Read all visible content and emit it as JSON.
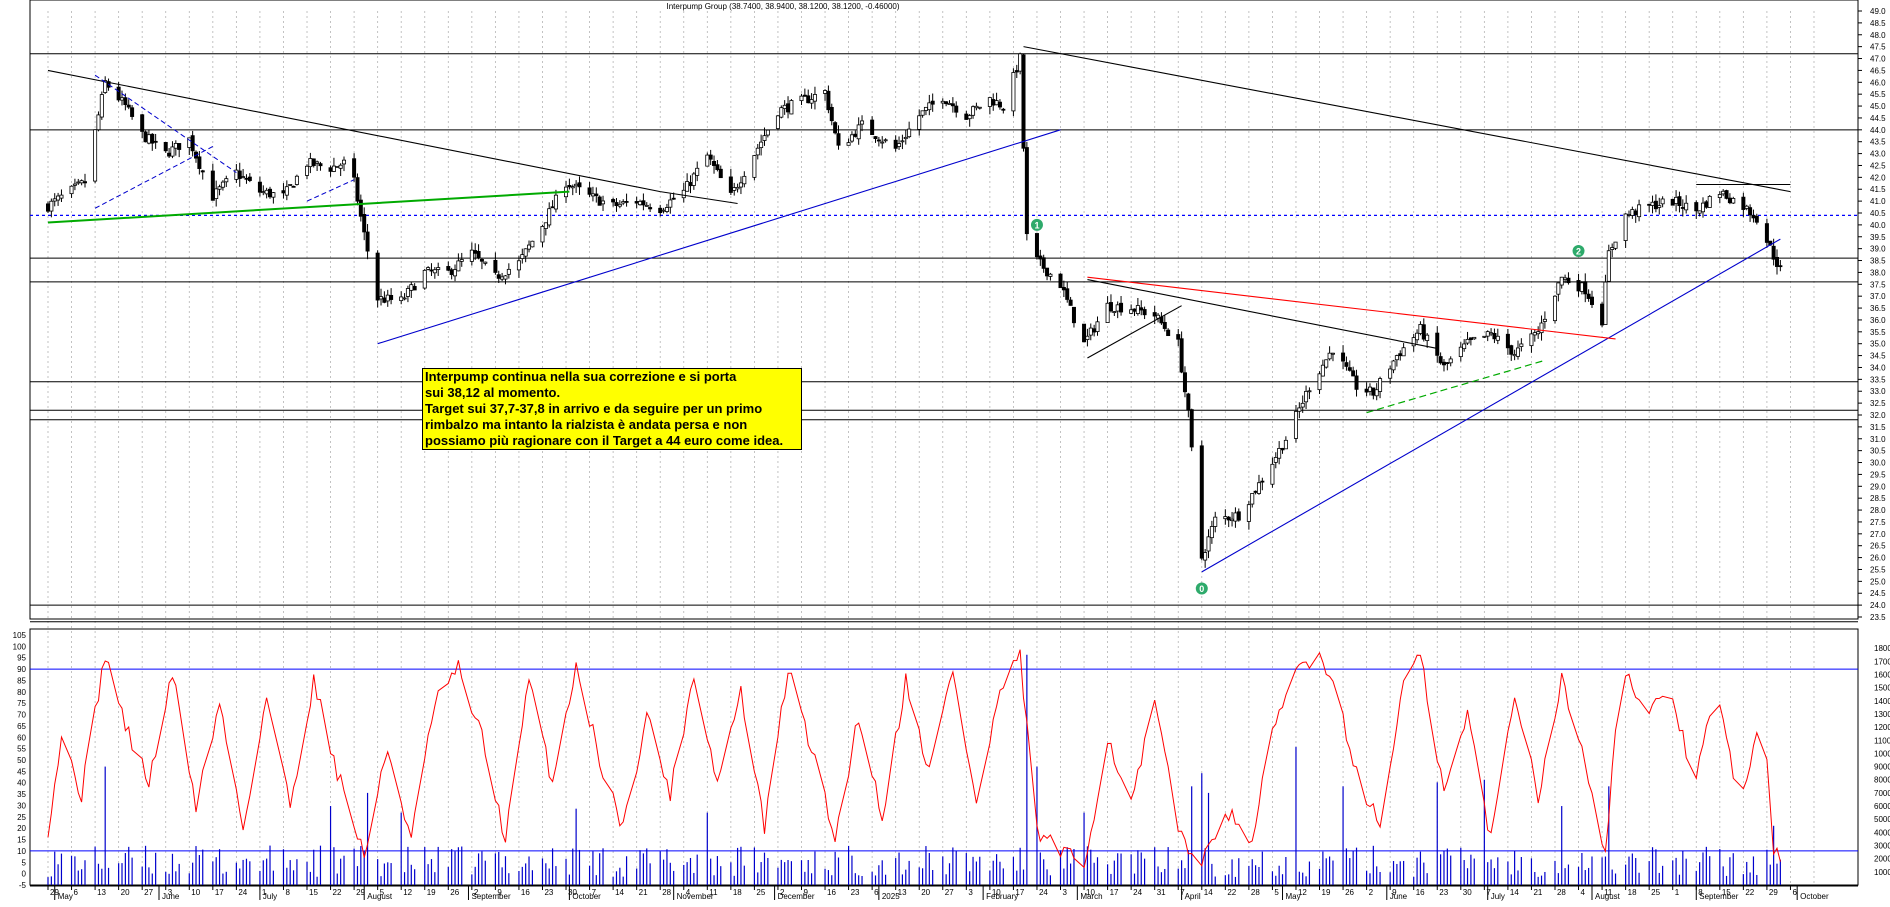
{
  "chart_data": {
    "type": "candlestick",
    "title": "Interpump Group (38.7400, 38.9400, 38.1200, 38.1200, -0.46000)",
    "price_axis": {
      "min": 23.5,
      "max": 49.0,
      "step": 0.5,
      "tick_labels": [
        "23.5",
        "24.0",
        "24.5",
        "25.0",
        "25.5",
        "26.0",
        "26.5",
        "27.0",
        "27.5",
        "28.0",
        "28.5",
        "29.0",
        "29.5",
        "30.0",
        "30.5",
        "31.0",
        "31.5",
        "32.0",
        "32.5",
        "33.0",
        "33.5",
        "34.0",
        "34.5",
        "35.0",
        "35.5",
        "36.0",
        "36.5",
        "37.0",
        "37.5",
        "38.0",
        "38.5",
        "39.0",
        "39.5",
        "40.0",
        "40.5",
        "41.0",
        "41.5",
        "42.0",
        "42.5",
        "43.0",
        "43.5",
        "44.0",
        "44.5",
        "45.0",
        "45.5",
        "46.0",
        "46.5",
        "47.0",
        "47.5",
        "48.0",
        "48.5",
        "49.0"
      ]
    },
    "oscillator_axis": {
      "min": -5,
      "max": 105,
      "tick_labels": [
        "-5",
        "0",
        "5",
        "10",
        "15",
        "20",
        "25",
        "30",
        "35",
        "40",
        "45",
        "50",
        "55",
        "60",
        "65",
        "70",
        "75",
        "80",
        "85",
        "90",
        "95",
        "100",
        "105"
      ],
      "levels": [
        10,
        90
      ]
    },
    "volume_axis": {
      "min": 0,
      "max": 19000,
      "tick_labels": [
        "1000",
        "2000",
        "3000",
        "4000",
        "5000",
        "6000",
        "7000",
        "8000",
        "9000",
        "10000",
        "11000",
        "12000",
        "13000",
        "14000",
        "15000",
        "16000",
        "17000",
        "18000"
      ]
    },
    "date_axis": {
      "days": [
        "29",
        "6",
        "13",
        "20",
        "27",
        "3",
        "10",
        "17",
        "24",
        "1",
        "8",
        "15",
        "22",
        "29",
        "5",
        "12",
        "19",
        "26",
        "2",
        "9",
        "16",
        "23",
        "30",
        "7",
        "14",
        "21",
        "28",
        "4",
        "11",
        "18",
        "25",
        "2",
        "9",
        "16",
        "23",
        "6",
        "13",
        "20",
        "27",
        "3",
        "10",
        "17",
        "24",
        "3",
        "10",
        "17",
        "24",
        "31",
        "7",
        "14",
        "22",
        "28",
        "5",
        "12",
        "19",
        "26",
        "2",
        "9",
        "16",
        "23",
        "30",
        "7",
        "14",
        "21",
        "28",
        "4",
        "11",
        "18",
        "25",
        "1",
        "8",
        "15",
        "22",
        "29",
        "6"
      ],
      "months": [
        "May",
        "June",
        "July",
        "August",
        "September",
        "October",
        "November",
        "December",
        "2025",
        "February",
        "March",
        "April",
        "May",
        "June",
        "July",
        "August",
        "September",
        "October"
      ],
      "first_day": "2024-04-29",
      "last_day": "2025-10-06"
    },
    "horizontal_levels": [
      47.2,
      44.0,
      38.6,
      37.6,
      33.4,
      32.2,
      31.8,
      24.0,
      23.3
    ],
    "dotted_level": 40.4,
    "trendlines": [
      {
        "color": "#000000",
        "from": [
          "2024-04-29",
          46.5
        ],
        "to": [
          "2024-10-28",
          41.4
        ]
      },
      {
        "color": "#00aa00",
        "from": [
          "2024-04-29",
          40.1
        ],
        "to": [
          "2024-10-01",
          41.4
        ]
      },
      {
        "color": "#0000cc",
        "from": [
          "2024-08-05",
          35.0
        ],
        "to": [
          "2025-02-24",
          44.0
        ]
      },
      {
        "color": "#000000",
        "from": [
          "2025-02-13",
          47.5
        ],
        "to": [
          "2025-09-29",
          41.4
        ]
      },
      {
        "color": "#0000cc",
        "from": [
          "2025-04-07",
          25.4
        ],
        "to": [
          "2025-09-26",
          39.4
        ]
      },
      {
        "color": "#ff0000",
        "from": [
          "2025-03-04",
          37.8
        ],
        "to": [
          "2025-08-08",
          35.2
        ]
      },
      {
        "color": "#000000",
        "from": [
          "2025-03-04",
          37.7
        ],
        "to": [
          "2025-06-16",
          34.8
        ]
      },
      {
        "color": "#000000",
        "from": [
          "2025-03-04",
          34.4
        ],
        "to": [
          "2025-04-01",
          36.6
        ]
      }
    ],
    "wave_labels": [
      {
        "label": "0",
        "date": "2025-04-07",
        "price": 24.7
      },
      {
        "label": "1",
        "date": "2025-02-17",
        "price": 40.0
      },
      {
        "label": "2",
        "date": "2025-07-28",
        "price": 38.9
      }
    ],
    "series": [
      {
        "name": "Price",
        "type": "candlestick",
        "color": "#000000",
        "anchors": [
          [
            "2024-04-29",
            40.8
          ],
          [
            "2024-05-10",
            41.8
          ],
          [
            "2024-05-16",
            46.0
          ],
          [
            "2024-05-22",
            45.0
          ],
          [
            "2024-05-27",
            43.8
          ],
          [
            "2024-06-03",
            43.0
          ],
          [
            "2024-06-10",
            43.6
          ],
          [
            "2024-06-17",
            41.2
          ],
          [
            "2024-06-24",
            42.2
          ],
          [
            "2024-07-01",
            41.4
          ],
          [
            "2024-07-08",
            41.2
          ],
          [
            "2024-07-15",
            42.6
          ],
          [
            "2024-07-22",
            42.4
          ],
          [
            "2024-07-26",
            42.6
          ],
          [
            "2024-07-29",
            41.8
          ],
          [
            "2024-08-01",
            39.6
          ],
          [
            "2024-08-05",
            36.9
          ],
          [
            "2024-08-12",
            36.8
          ],
          [
            "2024-08-19",
            38.0
          ],
          [
            "2024-08-26",
            38.0
          ],
          [
            "2024-09-02",
            38.8
          ],
          [
            "2024-09-09",
            37.8
          ],
          [
            "2024-09-16",
            38.4
          ],
          [
            "2024-09-23",
            40.0
          ],
          [
            "2024-09-30",
            41.8
          ],
          [
            "2024-10-07",
            41.2
          ],
          [
            "2024-10-14",
            40.8
          ],
          [
            "2024-10-21",
            41.0
          ],
          [
            "2024-10-28",
            40.7
          ],
          [
            "2024-11-04",
            41.4
          ],
          [
            "2024-11-11",
            42.9
          ],
          [
            "2024-11-18",
            41.2
          ],
          [
            "2024-11-25",
            43.0
          ],
          [
            "2024-12-02",
            44.8
          ],
          [
            "2024-12-09",
            45.2
          ],
          [
            "2024-12-16",
            45.6
          ],
          [
            "2024-12-20",
            43.2
          ],
          [
            "2024-12-27",
            44.2
          ],
          [
            "2025-01-06",
            43.2
          ],
          [
            "2025-01-13",
            44.6
          ],
          [
            "2025-01-20",
            45.4
          ],
          [
            "2025-01-27",
            44.6
          ],
          [
            "2025-02-03",
            45.3
          ],
          [
            "2025-02-07",
            45.0
          ],
          [
            "2025-02-12",
            47.0
          ],
          [
            "2025-02-14",
            39.5
          ],
          [
            "2025-02-17",
            38.5
          ],
          [
            "2025-02-24",
            37.5
          ],
          [
            "2025-03-03",
            35.0
          ],
          [
            "2025-03-10",
            36.6
          ],
          [
            "2025-03-17",
            36.5
          ],
          [
            "2025-03-24",
            36.2
          ],
          [
            "2025-03-31",
            35.0
          ],
          [
            "2025-04-03",
            32.0
          ],
          [
            "2025-04-07",
            26.0
          ],
          [
            "2025-04-11",
            27.6
          ],
          [
            "2025-04-18",
            27.8
          ],
          [
            "2025-04-25",
            29.3
          ],
          [
            "2025-05-02",
            31.0
          ],
          [
            "2025-05-09",
            33.2
          ],
          [
            "2025-05-16",
            34.8
          ],
          [
            "2025-05-23",
            33.2
          ],
          [
            "2025-05-28",
            32.9
          ],
          [
            "2025-06-04",
            34.5
          ],
          [
            "2025-06-11",
            35.6
          ],
          [
            "2025-06-18",
            34.0
          ],
          [
            "2025-06-25",
            35.0
          ],
          [
            "2025-07-02",
            35.4
          ],
          [
            "2025-07-09",
            34.6
          ],
          [
            "2025-07-16",
            35.5
          ],
          [
            "2025-07-23",
            37.8
          ],
          [
            "2025-07-30",
            37.3
          ],
          [
            "2025-08-04",
            36.0
          ],
          [
            "2025-08-06",
            38.8
          ],
          [
            "2025-08-11",
            40.4
          ],
          [
            "2025-08-18",
            40.8
          ],
          [
            "2025-08-25",
            41.0
          ],
          [
            "2025-09-01",
            40.6
          ],
          [
            "2025-09-08",
            41.4
          ],
          [
            "2025-09-15",
            40.8
          ],
          [
            "2025-09-19",
            40.3
          ],
          [
            "2025-09-24",
            38.7
          ],
          [
            "2025-09-26",
            38.12
          ]
        ]
      },
      {
        "name": "Oscillator",
        "type": "line",
        "color": "#ff0000",
        "anchors": [
          [
            "2024-04-29",
            20
          ],
          [
            "2024-05-03",
            60
          ],
          [
            "2024-05-09",
            35
          ],
          [
            "2024-05-16",
            97
          ],
          [
            "2024-05-22",
            65
          ],
          [
            "2024-05-29",
            40
          ],
          [
            "2024-06-05",
            88
          ],
          [
            "2024-06-12",
            30
          ],
          [
            "2024-06-19",
            75
          ],
          [
            "2024-06-26",
            20
          ],
          [
            "2024-07-03",
            78
          ],
          [
            "2024-07-10",
            30
          ],
          [
            "2024-07-17",
            85
          ],
          [
            "2024-07-24",
            45
          ],
          [
            "2024-08-01",
            8
          ],
          [
            "2024-08-08",
            55
          ],
          [
            "2024-08-15",
            15
          ],
          [
            "2024-08-22",
            75
          ],
          [
            "2024-08-29",
            90
          ],
          [
            "2024-09-05",
            60
          ],
          [
            "2024-09-12",
            15
          ],
          [
            "2024-09-19",
            85
          ],
          [
            "2024-09-26",
            40
          ],
          [
            "2024-10-03",
            92
          ],
          [
            "2024-10-10",
            50
          ],
          [
            "2024-10-17",
            20
          ],
          [
            "2024-10-24",
            70
          ],
          [
            "2024-10-31",
            35
          ],
          [
            "2024-11-07",
            88
          ],
          [
            "2024-11-14",
            40
          ],
          [
            "2024-11-21",
            80
          ],
          [
            "2024-11-28",
            20
          ],
          [
            "2024-12-05",
            90
          ],
          [
            "2024-12-12",
            55
          ],
          [
            "2024-12-19",
            15
          ],
          [
            "2024-12-26",
            70
          ],
          [
            "2025-01-02",
            25
          ],
          [
            "2025-01-09",
            85
          ],
          [
            "2025-01-16",
            45
          ],
          [
            "2025-01-23",
            90
          ],
          [
            "2025-01-30",
            30
          ],
          [
            "2025-02-06",
            80
          ],
          [
            "2025-02-12",
            95
          ],
          [
            "2025-02-17",
            18
          ],
          [
            "2025-02-24",
            10
          ],
          [
            "2025-03-03",
            3
          ],
          [
            "2025-03-10",
            60
          ],
          [
            "2025-03-17",
            30
          ],
          [
            "2025-03-24",
            75
          ],
          [
            "2025-03-31",
            20
          ],
          [
            "2025-04-07",
            3
          ],
          [
            "2025-04-14",
            30
          ],
          [
            "2025-04-21",
            10
          ],
          [
            "2025-04-28",
            60
          ],
          [
            "2025-05-05",
            90
          ],
          [
            "2025-05-12",
            97
          ],
          [
            "2025-05-16",
            85
          ],
          [
            "2025-05-23",
            45
          ],
          [
            "2025-05-30",
            20
          ],
          [
            "2025-06-06",
            85
          ],
          [
            "2025-06-11",
            95
          ],
          [
            "2025-06-18",
            35
          ],
          [
            "2025-06-25",
            70
          ],
          [
            "2025-07-02",
            15
          ],
          [
            "2025-07-09",
            80
          ],
          [
            "2025-07-16",
            35
          ],
          [
            "2025-07-23",
            85
          ],
          [
            "2025-07-30",
            50
          ],
          [
            "2025-08-05",
            10
          ],
          [
            "2025-08-10",
            95
          ],
          [
            "2025-08-17",
            65
          ],
          [
            "2025-08-24",
            85
          ],
          [
            "2025-08-31",
            40
          ],
          [
            "2025-09-07",
            80
          ],
          [
            "2025-09-14",
            30
          ],
          [
            "2025-09-21",
            70
          ],
          [
            "2025-09-24",
            12
          ],
          [
            "2025-09-28",
            4
          ]
        ]
      },
      {
        "name": "Volume",
        "type": "bar",
        "color": "#0000cc",
        "spikes": [
          [
            "2024-05-16",
            9000
          ],
          [
            "2024-07-22",
            6000
          ],
          [
            "2024-08-02",
            7000
          ],
          [
            "2024-08-12",
            5500
          ],
          [
            "2024-10-03",
            5800
          ],
          [
            "2024-11-11",
            5500
          ],
          [
            "2025-02-14",
            17500
          ],
          [
            "2025-02-17",
            9000
          ],
          [
            "2025-03-03",
            5500
          ],
          [
            "2025-04-04",
            7500
          ],
          [
            "2025-04-07",
            8500
          ],
          [
            "2025-04-09",
            7000
          ],
          [
            "2025-05-05",
            10500
          ],
          [
            "2025-05-19",
            7500
          ],
          [
            "2025-06-16",
            7800
          ],
          [
            "2025-06-30",
            8000
          ],
          [
            "2025-07-23",
            6000
          ],
          [
            "2025-08-06",
            7500
          ],
          [
            "2025-09-24",
            4500
          ]
        ]
      }
    ]
  },
  "note": {
    "lines": [
      "Interpump continua nella sua correzione e si porta",
      "sui 38,12 al momento.",
      "Target sui 37,7-37,8 in arrivo e da seguire per un primo",
      "rimbalzo ma intanto la rialzista è andata persa e non",
      "possiamo più ragionare con il Target a 44 euro come idea."
    ]
  },
  "colors": {
    "grid": "#b4b4b4",
    "candles": "#000000",
    "oscillator": "#ff0000",
    "volume": "#0000cc",
    "note_bg": "#ffff00",
    "wave_label": "#2eaa6b"
  }
}
